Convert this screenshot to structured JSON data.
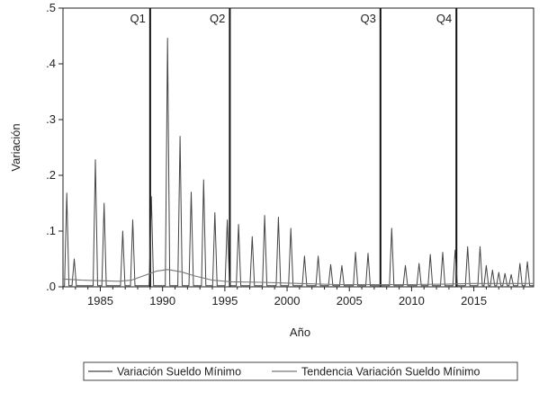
{
  "chart_data": {
    "type": "line",
    "title": "",
    "xlabel": "Año",
    "ylabel": "Variación",
    "xlim": [
      1982,
      2019.8
    ],
    "ylim": [
      0,
      0.5
    ],
    "x_ticks": [
      1985,
      1990,
      1995,
      2000,
      2005,
      2010,
      2015
    ],
    "x_tick_labels": [
      "1985",
      "1990",
      "1995",
      "2000",
      "2005",
      "2010",
      "2015"
    ],
    "y_ticks": [
      0,
      0.1,
      0.2,
      0.3,
      0.4,
      0.5
    ],
    "y_tick_labels": [
      ".0",
      ".1",
      ".2",
      ".3",
      ".4",
      ".5"
    ],
    "grid": false,
    "legend_position": "bottom",
    "quartile_lines": [
      {
        "x": 1989.0,
        "label": "Q1"
      },
      {
        "x": 1995.4,
        "label": "Q2"
      },
      {
        "x": 2007.5,
        "label": "Q3"
      },
      {
        "x": 2013.6,
        "label": "Q4"
      }
    ],
    "series": [
      {
        "name": "Variación Sueldo Mínimo",
        "color": "#444444",
        "style": "spikes",
        "points": [
          [
            1982.3,
            0.168
          ],
          [
            1982.9,
            0.05
          ],
          [
            1984.6,
            0.228
          ],
          [
            1985.3,
            0.15
          ],
          [
            1986.8,
            0.1
          ],
          [
            1987.6,
            0.12
          ],
          [
            1989.1,
            0.162
          ],
          [
            1990.4,
            0.446
          ],
          [
            1991.4,
            0.27
          ],
          [
            1992.3,
            0.17
          ],
          [
            1993.3,
            0.192
          ],
          [
            1994.2,
            0.133
          ],
          [
            1995.2,
            0.12
          ],
          [
            1996.1,
            0.112
          ],
          [
            1997.2,
            0.09
          ],
          [
            1998.2,
            0.128
          ],
          [
            1999.3,
            0.125
          ],
          [
            2000.3,
            0.105
          ],
          [
            2001.4,
            0.055
          ],
          [
            2002.5,
            0.055
          ],
          [
            2003.5,
            0.04
          ],
          [
            2004.4,
            0.038
          ],
          [
            2005.5,
            0.062
          ],
          [
            2006.5,
            0.06
          ],
          [
            2008.4,
            0.105
          ],
          [
            2009.5,
            0.038
          ],
          [
            2010.6,
            0.042
          ],
          [
            2011.5,
            0.058
          ],
          [
            2012.5,
            0.062
          ],
          [
            2013.5,
            0.066
          ],
          [
            2014.5,
            0.072
          ],
          [
            2015.5,
            0.072
          ],
          [
            2016.0,
            0.038
          ],
          [
            2016.5,
            0.03
          ],
          [
            2017.0,
            0.026
          ],
          [
            2017.5,
            0.024
          ],
          [
            2018.0,
            0.022
          ],
          [
            2018.7,
            0.042
          ],
          [
            2019.3,
            0.045
          ]
        ]
      },
      {
        "name": "Tendencia Variación Sueldo Mínimo",
        "color": "#777777",
        "style": "line",
        "points": [
          [
            1982.0,
            0.014
          ],
          [
            1983.5,
            0.012
          ],
          [
            1985.0,
            0.011
          ],
          [
            1986.5,
            0.01
          ],
          [
            1987.5,
            0.012
          ],
          [
            1988.5,
            0.02
          ],
          [
            1989.5,
            0.028
          ],
          [
            1990.4,
            0.031
          ],
          [
            1991.5,
            0.027
          ],
          [
            1992.5,
            0.02
          ],
          [
            1994.0,
            0.012
          ],
          [
            1995.5,
            0.009
          ],
          [
            1998.0,
            0.008
          ],
          [
            2001.0,
            0.006
          ],
          [
            2004.0,
            0.004
          ],
          [
            2007.0,
            0.004
          ],
          [
            2010.0,
            0.004
          ],
          [
            2013.0,
            0.005
          ],
          [
            2015.0,
            0.006
          ],
          [
            2017.0,
            0.006
          ],
          [
            2019.8,
            0.006
          ]
        ]
      }
    ]
  }
}
